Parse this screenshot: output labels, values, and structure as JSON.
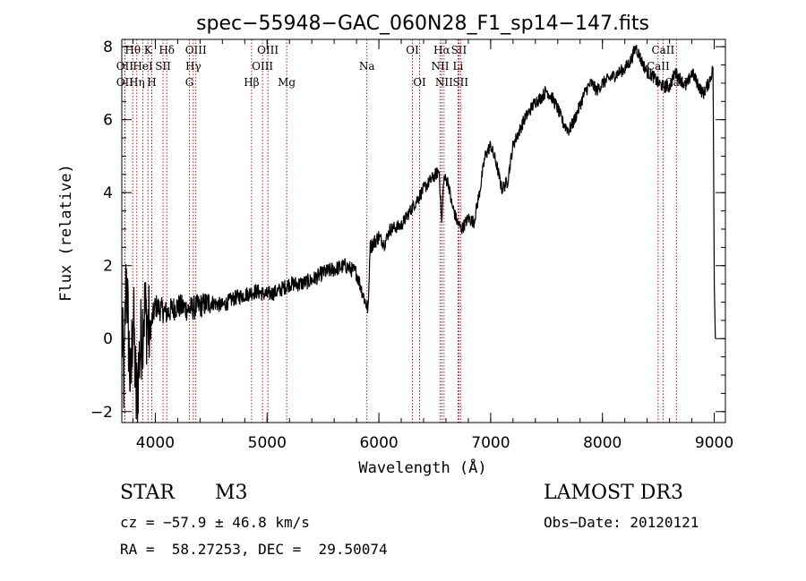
{
  "chart_data": {
    "type": "line",
    "title": "spec−55948−GAC_060N28_F1_sp14−147.fits",
    "xlabel": "Wavelength (Å)",
    "ylabel": "Flux (relative)",
    "xlim": [
      3700,
      9100
    ],
    "ylim": [
      -2.3,
      8.2
    ],
    "xticks": [
      4000,
      5000,
      6000,
      7000,
      8000,
      9000
    ],
    "yticks": [
      -2,
      0,
      2,
      4,
      6,
      8
    ],
    "x_minor_step": 200,
    "y_minor_step": 0.5,
    "line_color": "#000000",
    "marker_color": "#aa0000",
    "spectrum_anchors": [
      [
        3700,
        0.2
      ],
      [
        3720,
        -1.2
      ],
      [
        3740,
        1.9
      ],
      [
        3760,
        0.1
      ],
      [
        3780,
        -1.5
      ],
      [
        3800,
        0.9
      ],
      [
        3830,
        -1.8
      ],
      [
        3860,
        -0.4
      ],
      [
        3900,
        0.8
      ],
      [
        3950,
        0.2
      ],
      [
        4000,
        0.9
      ],
      [
        4100,
        0.7
      ],
      [
        4200,
        0.9
      ],
      [
        4300,
        0.8
      ],
      [
        4400,
        0.9
      ],
      [
        4500,
        1.0
      ],
      [
        4600,
        0.9
      ],
      [
        4700,
        1.1
      ],
      [
        4800,
        1.2
      ],
      [
        4900,
        1.3
      ],
      [
        5000,
        1.2
      ],
      [
        5100,
        1.3
      ],
      [
        5200,
        1.5
      ],
      [
        5300,
        1.5
      ],
      [
        5400,
        1.6
      ],
      [
        5500,
        1.8
      ],
      [
        5600,
        1.9
      ],
      [
        5700,
        2.0
      ],
      [
        5800,
        1.8
      ],
      [
        5880,
        1.0
      ],
      [
        5905,
        0.8
      ],
      [
        5920,
        2.5
      ],
      [
        6000,
        2.8
      ],
      [
        6050,
        2.6
      ],
      [
        6100,
        3.0
      ],
      [
        6200,
        3.1
      ],
      [
        6300,
        3.6
      ],
      [
        6400,
        4.1
      ],
      [
        6480,
        4.4
      ],
      [
        6540,
        4.6
      ],
      [
        6563,
        3.1
      ],
      [
        6580,
        4.4
      ],
      [
        6620,
        4.3
      ],
      [
        6650,
        3.7
      ],
      [
        6700,
        3.2
      ],
      [
        6740,
        3.0
      ],
      [
        6800,
        3.3
      ],
      [
        6850,
        3.2
      ],
      [
        6900,
        4.0
      ],
      [
        6950,
        5.0
      ],
      [
        7000,
        5.3
      ],
      [
        7050,
        4.8
      ],
      [
        7100,
        4.1
      ],
      [
        7150,
        4.3
      ],
      [
        7200,
        5.3
      ],
      [
        7300,
        6.0
      ],
      [
        7400,
        6.5
      ],
      [
        7450,
        6.6
      ],
      [
        7500,
        6.8
      ],
      [
        7550,
        6.6
      ],
      [
        7600,
        6.3
      ],
      [
        7650,
        5.9
      ],
      [
        7700,
        5.7
      ],
      [
        7750,
        6.0
      ],
      [
        7800,
        6.4
      ],
      [
        7850,
        6.8
      ],
      [
        7900,
        7.0
      ],
      [
        7950,
        6.8
      ],
      [
        8000,
        7.0
      ],
      [
        8050,
        7.1
      ],
      [
        8100,
        7.2
      ],
      [
        8150,
        7.3
      ],
      [
        8200,
        7.4
      ],
      [
        8250,
        7.6
      ],
      [
        8300,
        8.0
      ],
      [
        8350,
        7.6
      ],
      [
        8400,
        7.3
      ],
      [
        8450,
        7.2
      ],
      [
        8500,
        7.0
      ],
      [
        8550,
        6.9
      ],
      [
        8600,
        6.9
      ],
      [
        8650,
        7.3
      ],
      [
        8700,
        7.1
      ],
      [
        8750,
        6.9
      ],
      [
        8800,
        7.3
      ],
      [
        8850,
        7.0
      ],
      [
        8900,
        6.7
      ],
      [
        8950,
        7.0
      ],
      [
        8990,
        7.4
      ],
      [
        9000,
        1.6
      ],
      [
        9010,
        0.0
      ]
    ],
    "line_markers": [
      {
        "label": "Hθ",
        "x": 3798,
        "row": 0
      },
      {
        "label": "OII",
        "x": 3727,
        "row": 1
      },
      {
        "label": "OII",
        "x": 3727,
        "row": 2
      },
      {
        "label": "Hη",
        "x": 3835,
        "row": 2
      },
      {
        "label": "K",
        "x": 3934,
        "row": 0
      },
      {
        "label": "HeI",
        "x": 3889,
        "row": 1
      },
      {
        "label": "SII",
        "x": 4069,
        "row": 1
      },
      {
        "label": "H",
        "x": 3968,
        "row": 2
      },
      {
        "label": "Hδ",
        "x": 4102,
        "row": 0
      },
      {
        "label": "OIII",
        "x": 4363,
        "row": 0
      },
      {
        "label": "Hγ",
        "x": 4340,
        "row": 1
      },
      {
        "label": "G",
        "x": 4305,
        "row": 2
      },
      {
        "label": "OIII",
        "x": 5007,
        "row": 0
      },
      {
        "label": "OIII",
        "x": 4959,
        "row": 1
      },
      {
        "label": "Hβ",
        "x": 4861,
        "row": 2
      },
      {
        "label": "Mg",
        "x": 5175,
        "row": 2
      },
      {
        "label": "Na",
        "x": 5893,
        "row": 1
      },
      {
        "label": "OI",
        "x": 6300,
        "row": 0
      },
      {
        "label": "OI",
        "x": 6364,
        "row": 2
      },
      {
        "label": "Hα",
        "x": 6563,
        "row": 0
      },
      {
        "label": "SII",
        "x": 6716,
        "row": 0
      },
      {
        "label": "NII",
        "x": 6548,
        "row": 1
      },
      {
        "label": "Li",
        "x": 6708,
        "row": 1
      },
      {
        "label": "NII",
        "x": 6583,
        "row": 2
      },
      {
        "label": "SII",
        "x": 6731,
        "row": 2
      },
      {
        "label": "CaII",
        "x": 8542,
        "row": 0
      },
      {
        "label": "CaII",
        "x": 8498,
        "row": 1
      },
      {
        "label": "CaII",
        "x": 8662,
        "row": 2
      }
    ]
  },
  "info": {
    "object_class": "STAR",
    "subclass": "M3",
    "survey": "LAMOST DR3",
    "cz": "cz = −57.9 ± 46.8 km/s",
    "obs_date": "Obs−Date: 20120121",
    "coords": "RA =  58.27253, DEC =  29.50074"
  }
}
